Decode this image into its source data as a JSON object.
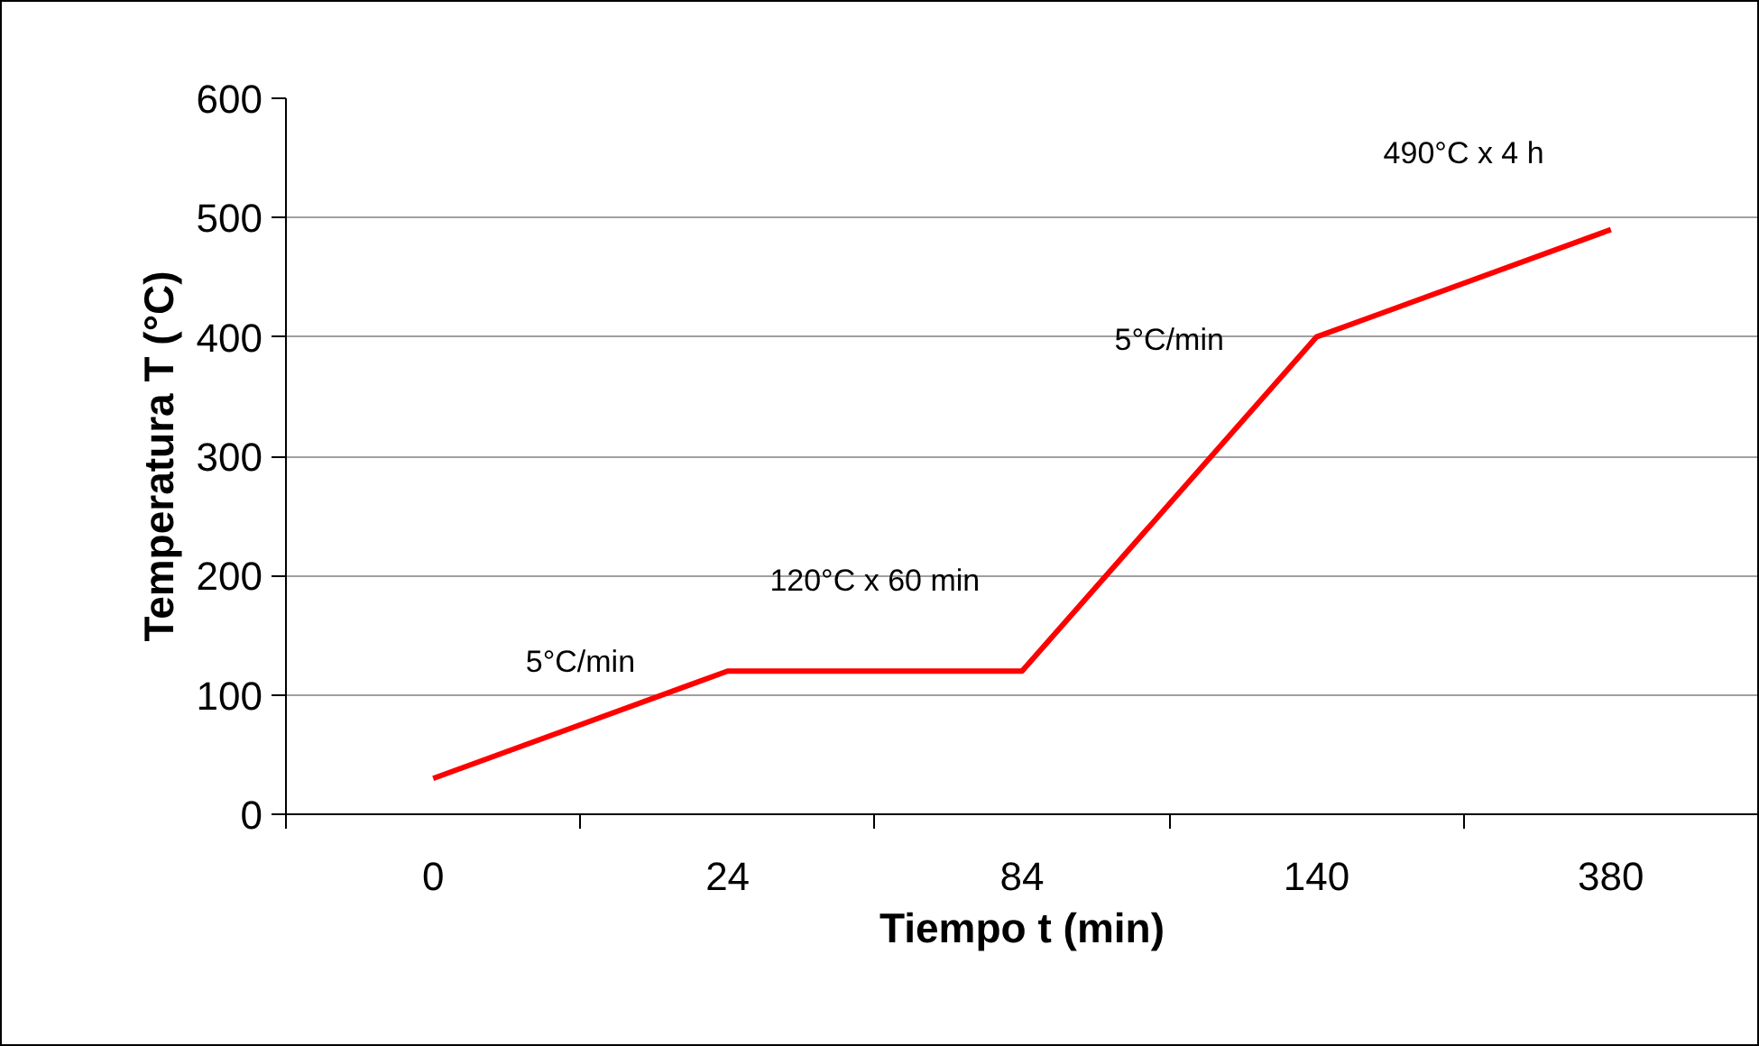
{
  "chart_data": {
    "type": "line",
    "xlabel": "Tiempo t (min)",
    "ylabel": "Temperatura T (°C)",
    "categories": [
      "0",
      "24",
      "84",
      "140",
      "380"
    ],
    "series": [
      {
        "color": "#ff0000",
        "values": [
          30,
          120,
          120,
          400,
          490
        ]
      }
    ],
    "ylim": [
      0,
      600
    ],
    "yticks": [
      0,
      100,
      200,
      300,
      400,
      500,
      600
    ],
    "grid": "y",
    "marker": "none",
    "line_style": "solid",
    "annotations": [
      "5°C/min",
      "120°C x 60 min",
      "5°C/min",
      "490°C x 4 h"
    ]
  }
}
